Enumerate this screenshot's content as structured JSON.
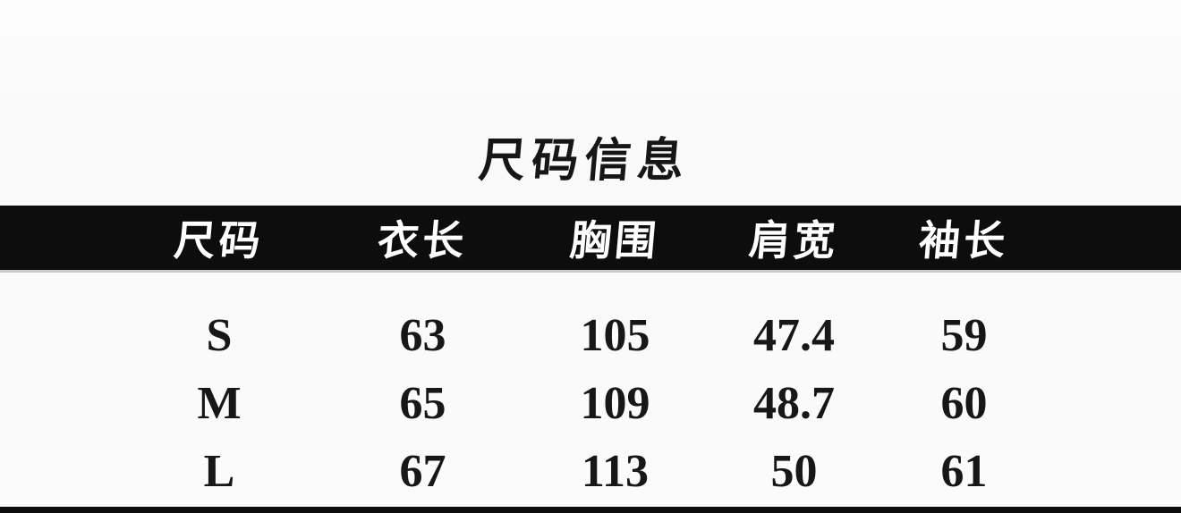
{
  "chart_data": {
    "type": "table",
    "title": "尺码信息",
    "columns": [
      "尺码",
      "衣长",
      "胸围",
      "肩宽",
      "袖长"
    ],
    "rows": [
      [
        "S",
        "63",
        "105",
        "47.4",
        "59"
      ],
      [
        "M",
        "65",
        "109",
        "48.7",
        "60"
      ],
      [
        "L",
        "67",
        "113",
        "50",
        "61"
      ]
    ]
  },
  "colors": {
    "header_bg": "#0d0d0d",
    "header_text": "#ffffff",
    "body_text": "#171717",
    "background": "#fafafa"
  }
}
